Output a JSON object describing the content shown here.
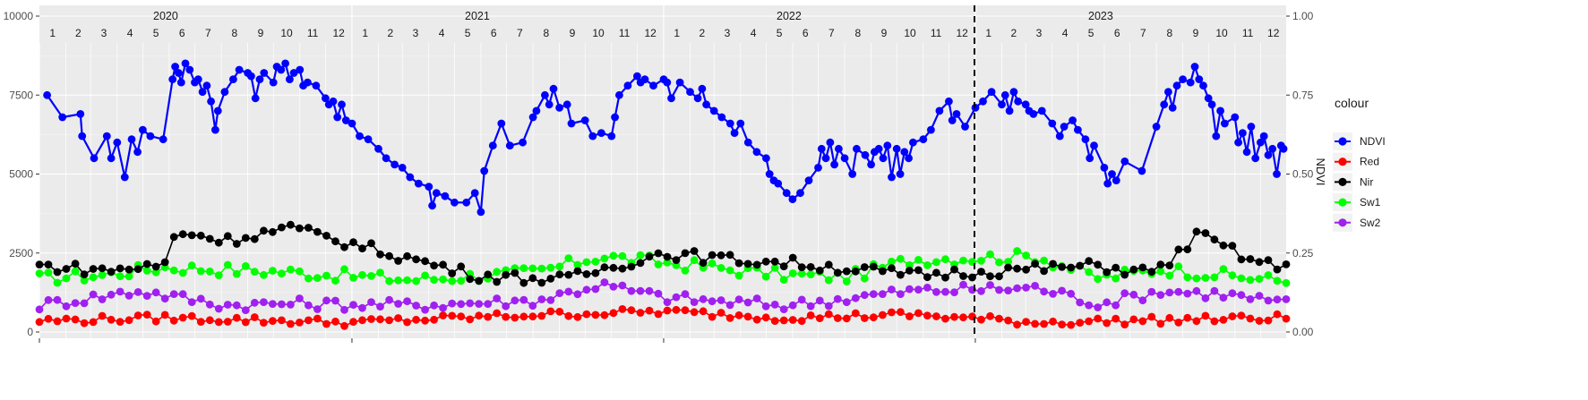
{
  "chart_data": {
    "type": "line",
    "ylabel_right": "NDVI",
    "y_left_ticks": [
      "0",
      "2500",
      "5000",
      "7500",
      "10000"
    ],
    "y_left_range": [
      0,
      10000
    ],
    "y_right_ticks": [
      "0.00",
      "0.25",
      "0.50",
      "0.75",
      "1.00"
    ],
    "y_right_range": [
      0,
      1
    ],
    "x_range": [
      "2020-01-01",
      "2023-12-31"
    ],
    "years": [
      "2020",
      "2021",
      "2022",
      "2023"
    ],
    "months": [
      "1",
      "2",
      "3",
      "4",
      "5",
      "6",
      "7",
      "8",
      "9",
      "10",
      "11",
      "12"
    ],
    "vline_date": "2022-12-31",
    "grid": true,
    "legend": {
      "title": "colour",
      "placement": "right",
      "entries": [
        "NDVI",
        "Red",
        "Nir",
        "Sw1",
        "Sw2"
      ]
    },
    "series": [
      {
        "name": "NDVI",
        "color": "#0000ff",
        "axis": "right",
        "points": [
          [
            "2020-01-10",
            0.75
          ],
          [
            "2020-01-28",
            0.68
          ],
          [
            "2020-02-18",
            0.69
          ],
          [
            "2020-02-20",
            0.62
          ],
          [
            "2020-03-05",
            0.55
          ],
          [
            "2020-03-20",
            0.62
          ],
          [
            "2020-03-25",
            0.55
          ],
          [
            "2020-04-01",
            0.6
          ],
          [
            "2020-04-10",
            0.49
          ],
          [
            "2020-04-18",
            0.61
          ],
          [
            "2020-04-25",
            0.57
          ],
          [
            "2020-05-01",
            0.64
          ],
          [
            "2020-05-10",
            0.62
          ],
          [
            "2020-05-25",
            0.61
          ],
          [
            "2020-06-05",
            0.8
          ],
          [
            "2020-06-08",
            0.84
          ],
          [
            "2020-06-12",
            0.82
          ],
          [
            "2020-06-15",
            0.79
          ],
          [
            "2020-06-20",
            0.85
          ],
          [
            "2020-06-25",
            0.83
          ],
          [
            "2020-07-01",
            0.79
          ],
          [
            "2020-07-05",
            0.8
          ],
          [
            "2020-07-10",
            0.76
          ],
          [
            "2020-07-15",
            0.78
          ],
          [
            "2020-07-20",
            0.73
          ],
          [
            "2020-07-25",
            0.64
          ],
          [
            "2020-07-28",
            0.7
          ],
          [
            "2020-08-05",
            0.76
          ],
          [
            "2020-08-15",
            0.8
          ],
          [
            "2020-08-22",
            0.83
          ],
          [
            "2020-09-01",
            0.82
          ],
          [
            "2020-09-05",
            0.81
          ],
          [
            "2020-09-10",
            0.74
          ],
          [
            "2020-09-15",
            0.8
          ],
          [
            "2020-09-20",
            0.82
          ],
          [
            "2020-10-01",
            0.79
          ],
          [
            "2020-10-05",
            0.84
          ],
          [
            "2020-10-10",
            0.83
          ],
          [
            "2020-10-15",
            0.85
          ],
          [
            "2020-10-20",
            0.8
          ],
          [
            "2020-10-25",
            0.82
          ],
          [
            "2020-11-01",
            0.83
          ],
          [
            "2020-11-05",
            0.78
          ],
          [
            "2020-11-10",
            0.79
          ],
          [
            "2020-11-20",
            0.78
          ],
          [
            "2020-12-01",
            0.74
          ],
          [
            "2020-12-05",
            0.72
          ],
          [
            "2020-12-10",
            0.73
          ],
          [
            "2020-12-15",
            0.68
          ],
          [
            "2020-12-20",
            0.72
          ],
          [
            "2020-12-25",
            0.67
          ],
          [
            "2021-01-01",
            0.66
          ],
          [
            "2021-01-10",
            0.62
          ],
          [
            "2021-01-20",
            0.61
          ],
          [
            "2021-02-01",
            0.58
          ],
          [
            "2021-02-10",
            0.55
          ],
          [
            "2021-02-20",
            0.53
          ],
          [
            "2021-03-01",
            0.52
          ],
          [
            "2021-03-10",
            0.49
          ],
          [
            "2021-03-20",
            0.47
          ],
          [
            "2021-04-01",
            0.46
          ],
          [
            "2021-04-05",
            0.4
          ],
          [
            "2021-04-10",
            0.44
          ],
          [
            "2021-04-20",
            0.43
          ],
          [
            "2021-05-01",
            0.41
          ],
          [
            "2021-05-15",
            0.41
          ],
          [
            "2021-05-25",
            0.44
          ],
          [
            "2021-06-01",
            0.38
          ],
          [
            "2021-06-05",
            0.51
          ],
          [
            "2021-06-15",
            0.59
          ],
          [
            "2021-06-25",
            0.66
          ],
          [
            "2021-07-05",
            0.59
          ],
          [
            "2021-07-20",
            0.6
          ],
          [
            "2021-08-01",
            0.68
          ],
          [
            "2021-08-05",
            0.7
          ],
          [
            "2021-08-15",
            0.75
          ],
          [
            "2021-08-20",
            0.72
          ],
          [
            "2021-08-25",
            0.77
          ],
          [
            "2021-09-01",
            0.71
          ],
          [
            "2021-09-10",
            0.72
          ],
          [
            "2021-09-15",
            0.66
          ],
          [
            "2021-10-01",
            0.67
          ],
          [
            "2021-10-10",
            0.62
          ],
          [
            "2021-10-20",
            0.63
          ],
          [
            "2021-11-01",
            0.62
          ],
          [
            "2021-11-05",
            0.68
          ],
          [
            "2021-11-10",
            0.75
          ],
          [
            "2021-11-20",
            0.78
          ],
          [
            "2021-12-01",
            0.81
          ],
          [
            "2021-12-05",
            0.79
          ],
          [
            "2021-12-10",
            0.8
          ],
          [
            "2021-12-20",
            0.78
          ],
          [
            "2022-01-01",
            0.8
          ],
          [
            "2022-01-05",
            0.79
          ],
          [
            "2022-01-10",
            0.74
          ],
          [
            "2022-01-20",
            0.79
          ],
          [
            "2022-02-01",
            0.76
          ],
          [
            "2022-02-10",
            0.74
          ],
          [
            "2022-02-15",
            0.77
          ],
          [
            "2022-02-20",
            0.72
          ],
          [
            "2022-03-01",
            0.7
          ],
          [
            "2022-03-10",
            0.68
          ],
          [
            "2022-03-20",
            0.66
          ],
          [
            "2022-03-25",
            0.63
          ],
          [
            "2022-04-01",
            0.66
          ],
          [
            "2022-04-10",
            0.6
          ],
          [
            "2022-04-20",
            0.57
          ],
          [
            "2022-05-01",
            0.55
          ],
          [
            "2022-05-05",
            0.5
          ],
          [
            "2022-05-10",
            0.48
          ],
          [
            "2022-05-15",
            0.47
          ],
          [
            "2022-05-25",
            0.44
          ],
          [
            "2022-06-01",
            0.42
          ],
          [
            "2022-06-10",
            0.44
          ],
          [
            "2022-06-20",
            0.48
          ],
          [
            "2022-07-01",
            0.52
          ],
          [
            "2022-07-05",
            0.58
          ],
          [
            "2022-07-10",
            0.55
          ],
          [
            "2022-07-15",
            0.6
          ],
          [
            "2022-07-20",
            0.53
          ],
          [
            "2022-07-25",
            0.58
          ],
          [
            "2022-08-01",
            0.55
          ],
          [
            "2022-08-10",
            0.5
          ],
          [
            "2022-08-15",
            0.58
          ],
          [
            "2022-08-25",
            0.56
          ],
          [
            "2022-09-01",
            0.53
          ],
          [
            "2022-09-05",
            0.57
          ],
          [
            "2022-09-10",
            0.58
          ],
          [
            "2022-09-15",
            0.55
          ],
          [
            "2022-09-20",
            0.59
          ],
          [
            "2022-09-25",
            0.49
          ],
          [
            "2022-10-01",
            0.58
          ],
          [
            "2022-10-05",
            0.5
          ],
          [
            "2022-10-10",
            0.57
          ],
          [
            "2022-10-15",
            0.55
          ],
          [
            "2022-10-20",
            0.6
          ],
          [
            "2022-11-01",
            0.61
          ],
          [
            "2022-11-10",
            0.64
          ],
          [
            "2022-11-20",
            0.7
          ],
          [
            "2022-12-01",
            0.73
          ],
          [
            "2022-12-05",
            0.67
          ],
          [
            "2022-12-10",
            0.69
          ],
          [
            "2022-12-20",
            0.65
          ],
          [
            "2023-01-01",
            0.71
          ],
          [
            "2023-01-10",
            0.73
          ],
          [
            "2023-01-20",
            0.76
          ],
          [
            "2023-02-01",
            0.72
          ],
          [
            "2023-02-05",
            0.75
          ],
          [
            "2023-02-10",
            0.7
          ],
          [
            "2023-02-15",
            0.76
          ],
          [
            "2023-02-20",
            0.73
          ],
          [
            "2023-03-01",
            0.72
          ],
          [
            "2023-03-05",
            0.7
          ],
          [
            "2023-03-10",
            0.69
          ],
          [
            "2023-03-20",
            0.7
          ],
          [
            "2023-04-01",
            0.66
          ],
          [
            "2023-04-10",
            0.62
          ],
          [
            "2023-04-15",
            0.65
          ],
          [
            "2023-04-25",
            0.67
          ],
          [
            "2023-05-01",
            0.64
          ],
          [
            "2023-05-10",
            0.61
          ],
          [
            "2023-05-15",
            0.55
          ],
          [
            "2023-05-20",
            0.59
          ],
          [
            "2023-06-01",
            0.52
          ],
          [
            "2023-06-05",
            0.47
          ],
          [
            "2023-06-10",
            0.5
          ],
          [
            "2023-06-15",
            0.48
          ],
          [
            "2023-06-25",
            0.54
          ],
          [
            "2023-07-15",
            0.51
          ],
          [
            "2023-08-01",
            0.65
          ],
          [
            "2023-08-10",
            0.72
          ],
          [
            "2023-08-15",
            0.76
          ],
          [
            "2023-08-20",
            0.71
          ],
          [
            "2023-08-25",
            0.78
          ],
          [
            "2023-09-01",
            0.8
          ],
          [
            "2023-09-10",
            0.79
          ],
          [
            "2023-09-15",
            0.84
          ],
          [
            "2023-09-20",
            0.8
          ],
          [
            "2023-09-25",
            0.78
          ],
          [
            "2023-10-01",
            0.74
          ],
          [
            "2023-10-05",
            0.72
          ],
          [
            "2023-10-10",
            0.62
          ],
          [
            "2023-10-15",
            0.7
          ],
          [
            "2023-10-20",
            0.66
          ],
          [
            "2023-11-01",
            0.68
          ],
          [
            "2023-11-05",
            0.6
          ],
          [
            "2023-11-10",
            0.63
          ],
          [
            "2023-11-15",
            0.57
          ],
          [
            "2023-11-20",
            0.65
          ],
          [
            "2023-11-25",
            0.55
          ],
          [
            "2023-12-01",
            0.6
          ],
          [
            "2023-12-05",
            0.62
          ],
          [
            "2023-12-10",
            0.56
          ],
          [
            "2023-12-15",
            0.58
          ],
          [
            "2023-12-20",
            0.5
          ],
          [
            "2023-12-25",
            0.59
          ],
          [
            "2023-12-28",
            0.58
          ]
        ]
      },
      {
        "name": "Red",
        "color": "#ff0000",
        "axis": "left",
        "base": [
          [
            0,
            350
          ],
          [
            0.1,
            450
          ],
          [
            0.25,
            300
          ],
          [
            0.4,
            550
          ],
          [
            0.5,
            650
          ],
          [
            0.6,
            450
          ],
          [
            0.7,
            550
          ],
          [
            0.8,
            300
          ],
          [
            1.0,
            450
          ]
        ],
        "amp": 120,
        "n": 140
      },
      {
        "name": "Nir",
        "color": "#000000",
        "axis": "left",
        "base": [
          [
            0,
            2100
          ],
          [
            0.05,
            1950
          ],
          [
            0.1,
            2100
          ],
          [
            0.11,
            3200
          ],
          [
            0.15,
            2900
          ],
          [
            0.2,
            3300
          ],
          [
            0.24,
            2900
          ],
          [
            0.3,
            2300
          ],
          [
            0.35,
            1800
          ],
          [
            0.42,
            1650
          ],
          [
            0.5,
            2500
          ],
          [
            0.55,
            2300
          ],
          [
            0.6,
            2200
          ],
          [
            0.7,
            1800
          ],
          [
            0.8,
            2000
          ],
          [
            0.85,
            2100
          ],
          [
            0.88,
            1900
          ],
          [
            0.9,
            2000
          ],
          [
            0.93,
            3100
          ],
          [
            0.97,
            2300
          ],
          [
            1.0,
            2000
          ]
        ],
        "amp": 180,
        "n": 140
      },
      {
        "name": "Sw1",
        "color": "#00ff00",
        "axis": "left",
        "base": [
          [
            0,
            1700
          ],
          [
            0.05,
            1800
          ],
          [
            0.1,
            2050
          ],
          [
            0.2,
            1900
          ],
          [
            0.3,
            1650
          ],
          [
            0.4,
            1900
          ],
          [
            0.45,
            2400
          ],
          [
            0.5,
            2200
          ],
          [
            0.6,
            1800
          ],
          [
            0.65,
            1750
          ],
          [
            0.7,
            2300
          ],
          [
            0.8,
            2400
          ],
          [
            0.85,
            1700
          ],
          [
            0.9,
            2000
          ],
          [
            1.0,
            1600
          ]
        ],
        "amp": 200,
        "n": 140
      },
      {
        "name": "Sw2",
        "color": "#a020f0",
        "axis": "left",
        "base": [
          [
            0,
            850
          ],
          [
            0.08,
            1300
          ],
          [
            0.15,
            850
          ],
          [
            0.2,
            900
          ],
          [
            0.3,
            850
          ],
          [
            0.4,
            1000
          ],
          [
            0.45,
            1500
          ],
          [
            0.5,
            1100
          ],
          [
            0.55,
            950
          ],
          [
            0.6,
            850
          ],
          [
            0.7,
            1300
          ],
          [
            0.8,
            1400
          ],
          [
            0.85,
            900
          ],
          [
            0.9,
            1300
          ],
          [
            0.95,
            1200
          ],
          [
            1.0,
            900
          ]
        ],
        "amp": 180,
        "n": 140
      }
    ]
  }
}
